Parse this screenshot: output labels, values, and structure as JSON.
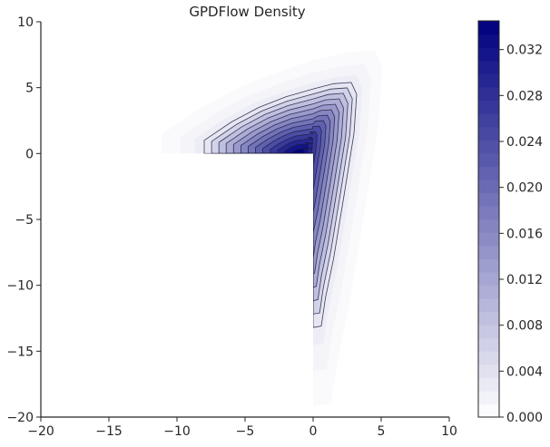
{
  "chart_data": {
    "type": "contour",
    "title": "GPDFlow Density",
    "xlabel": "",
    "ylabel": "",
    "xlim": [
      -20,
      10
    ],
    "ylim": [
      -20,
      10
    ],
    "x_ticks": [
      -20,
      -15,
      -10,
      -5,
      0,
      5,
      10
    ],
    "y_ticks": [
      -20,
      -15,
      -10,
      -5,
      0,
      5,
      10
    ],
    "x_tick_labels": [
      "−20",
      "−15",
      "−10",
      "−5",
      "0",
      "5",
      "10"
    ],
    "y_tick_labels": [
      "−20",
      "−15",
      "−10",
      "−5",
      "0",
      "5",
      "10"
    ],
    "grid": false,
    "colormap": "Blues-to-navy (white → #00007f)",
    "colorbar": {
      "range": [
        0.0,
        0.0345
      ],
      "ticks": [
        0.0,
        0.004,
        0.008,
        0.012,
        0.016,
        0.02,
        0.024,
        0.028,
        0.032
      ],
      "tick_labels": [
        "0.000",
        "0.004",
        "0.008",
        "0.012",
        "0.016",
        "0.020",
        "0.024",
        "0.028",
        "0.032"
      ],
      "placement": "right"
    },
    "density_shape": "L-shaped support: x in [-10.5, 4.5], y in [-13.5, 10]; excluded region x<0 and y<0; peak near (-1, 0)",
    "peak_density": 0.034,
    "contour_outer_boundary": [
      [
        -8.0,
        0.0
      ],
      [
        -8.0,
        1.0
      ],
      [
        -6.0,
        2.4
      ],
      [
        -4.0,
        3.5
      ],
      [
        -2.0,
        4.3
      ],
      [
        0.0,
        4.9
      ],
      [
        1.5,
        5.3
      ],
      [
        2.8,
        5.4
      ],
      [
        3.2,
        4.5
      ],
      [
        3.0,
        1.5
      ],
      [
        2.3,
        -3.0
      ],
      [
        1.5,
        -8.0
      ],
      [
        0.9,
        -11.0
      ],
      [
        0.6,
        -13.1
      ],
      [
        0.0,
        -13.2
      ]
    ]
  },
  "colors": {
    "high": "#00007f",
    "low": "#ffffff",
    "contour_line": "#1c1c3c",
    "axis": "#262626"
  }
}
